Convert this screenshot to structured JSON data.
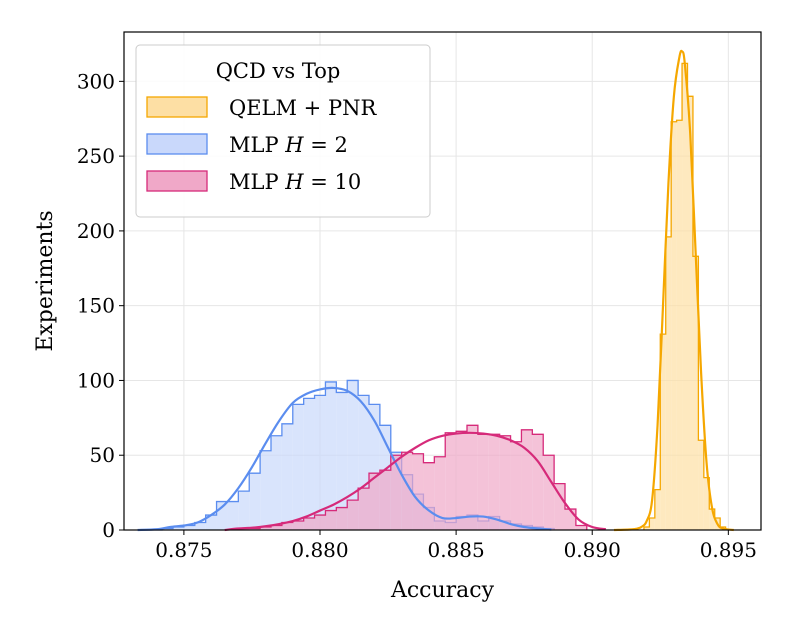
{
  "chart_data": {
    "type": "histogram",
    "title": "",
    "xlabel": "Accuracy",
    "ylabel": "Experiments",
    "xlim": [
      0.8728,
      0.8962
    ],
    "ylim": [
      0,
      333
    ],
    "xticks": [
      0.875,
      0.88,
      0.885,
      0.89,
      0.895
    ],
    "xtick_labels": [
      "0.875",
      "0.880",
      "0.885",
      "0.890",
      "0.895"
    ],
    "yticks": [
      0,
      50,
      100,
      150,
      200,
      250,
      300
    ],
    "ytick_labels": [
      "0",
      "50",
      "100",
      "150",
      "200",
      "250",
      "300"
    ],
    "grid": true,
    "legend": {
      "title": "QCD vs Top",
      "placement": "top-left",
      "entries": [
        "QELM + PNR",
        "MLP H = 2",
        "MLP H = 10"
      ]
    },
    "series": [
      {
        "name": "MLP H = 2",
        "label_main": "MLP ",
        "label_var": "H",
        "label_rest": " = 2",
        "fill": "#c9d8fb",
        "edge": "#5b8def",
        "bin_width": 0.0004,
        "bins": [
          [
            0.8734,
            0
          ],
          [
            0.8738,
            0
          ],
          [
            0.8742,
            1
          ],
          [
            0.8746,
            2
          ],
          [
            0.875,
            3
          ],
          [
            0.8754,
            5
          ],
          [
            0.8758,
            10
          ],
          [
            0.8762,
            19
          ],
          [
            0.8766,
            19
          ],
          [
            0.877,
            26
          ],
          [
            0.8774,
            38
          ],
          [
            0.8778,
            53
          ],
          [
            0.8782,
            63
          ],
          [
            0.8786,
            71
          ],
          [
            0.879,
            84
          ],
          [
            0.8794,
            88
          ],
          [
            0.8798,
            90
          ],
          [
            0.8802,
            99
          ],
          [
            0.8806,
            92
          ],
          [
            0.881,
            100
          ],
          [
            0.8814,
            90
          ],
          [
            0.8818,
            84
          ],
          [
            0.8822,
            70
          ],
          [
            0.8826,
            52
          ],
          [
            0.883,
            37
          ],
          [
            0.8834,
            24
          ],
          [
            0.8838,
            15
          ],
          [
            0.8842,
            6
          ],
          [
            0.8846,
            5
          ],
          [
            0.885,
            9
          ],
          [
            0.8854,
            10
          ],
          [
            0.8858,
            6
          ],
          [
            0.8862,
            9
          ],
          [
            0.8866,
            6
          ],
          [
            0.887,
            4
          ],
          [
            0.8874,
            3
          ],
          [
            0.8878,
            2
          ],
          [
            0.8882,
            1
          ]
        ],
        "kde": [
          [
            0.8733,
            0
          ],
          [
            0.874,
            0.5
          ],
          [
            0.8745,
            2
          ],
          [
            0.875,
            3
          ],
          [
            0.8755,
            5
          ],
          [
            0.876,
            10
          ],
          [
            0.8765,
            17
          ],
          [
            0.877,
            28
          ],
          [
            0.8775,
            42
          ],
          [
            0.878,
            58
          ],
          [
            0.8785,
            73
          ],
          [
            0.879,
            85
          ],
          [
            0.8795,
            91
          ],
          [
            0.88,
            94
          ],
          [
            0.8805,
            95
          ],
          [
            0.881,
            93
          ],
          [
            0.8815,
            86
          ],
          [
            0.882,
            73
          ],
          [
            0.8825,
            55
          ],
          [
            0.883,
            37
          ],
          [
            0.8835,
            22
          ],
          [
            0.884,
            13
          ],
          [
            0.8845,
            8
          ],
          [
            0.885,
            8
          ],
          [
            0.8855,
            9
          ],
          [
            0.886,
            9
          ],
          [
            0.8865,
            7
          ],
          [
            0.887,
            4
          ],
          [
            0.8875,
            2
          ],
          [
            0.888,
            1
          ],
          [
            0.8885,
            0.3
          ]
        ]
      },
      {
        "name": "MLP H = 10",
        "label_main": "MLP ",
        "label_var": "H",
        "label_rest": " = 10",
        "fill": "#f0a8c8",
        "edge": "#d62a7a",
        "bin_width": 0.0004,
        "bins": [
          [
            0.877,
            1
          ],
          [
            0.8774,
            1
          ],
          [
            0.8778,
            2
          ],
          [
            0.8782,
            3
          ],
          [
            0.8786,
            5
          ],
          [
            0.879,
            6
          ],
          [
            0.8794,
            8
          ],
          [
            0.8798,
            10
          ],
          [
            0.8802,
            13
          ],
          [
            0.8806,
            15
          ],
          [
            0.881,
            20
          ],
          [
            0.8814,
            28
          ],
          [
            0.8818,
            38
          ],
          [
            0.8822,
            40
          ],
          [
            0.8826,
            50
          ],
          [
            0.883,
            52
          ],
          [
            0.8834,
            51
          ],
          [
            0.8838,
            45
          ],
          [
            0.8842,
            49
          ],
          [
            0.8846,
            65
          ],
          [
            0.885,
            66
          ],
          [
            0.8854,
            70
          ],
          [
            0.8858,
            64
          ],
          [
            0.8862,
            64
          ],
          [
            0.8866,
            63
          ],
          [
            0.887,
            59
          ],
          [
            0.8874,
            67
          ],
          [
            0.8878,
            64
          ],
          [
            0.8882,
            50
          ],
          [
            0.8886,
            31
          ],
          [
            0.889,
            14
          ],
          [
            0.8894,
            3
          ]
        ],
        "kde": [
          [
            0.8765,
            0
          ],
          [
            0.877,
            1
          ],
          [
            0.8775,
            1.5
          ],
          [
            0.878,
            2.5
          ],
          [
            0.8785,
            4
          ],
          [
            0.879,
            6
          ],
          [
            0.8795,
            9
          ],
          [
            0.88,
            13
          ],
          [
            0.8805,
            17
          ],
          [
            0.881,
            22
          ],
          [
            0.8815,
            28
          ],
          [
            0.882,
            35
          ],
          [
            0.8825,
            42
          ],
          [
            0.883,
            49
          ],
          [
            0.8835,
            55
          ],
          [
            0.884,
            60
          ],
          [
            0.8845,
            63
          ],
          [
            0.885,
            64.5
          ],
          [
            0.8855,
            65
          ],
          [
            0.886,
            64.5
          ],
          [
            0.8865,
            63
          ],
          [
            0.887,
            60
          ],
          [
            0.8875,
            55
          ],
          [
            0.888,
            46
          ],
          [
            0.8885,
            32
          ],
          [
            0.889,
            18
          ],
          [
            0.8895,
            7
          ],
          [
            0.89,
            2
          ],
          [
            0.8905,
            0.5
          ]
        ]
      },
      {
        "name": "QELM + PNR",
        "label_main": "QELM + PNR",
        "label_var": "",
        "label_rest": "",
        "fill": "#fddfa4",
        "edge": "#f5a700",
        "bin_width": 0.0002,
        "bins": [
          [
            0.8919,
            2
          ],
          [
            0.8921,
            8
          ],
          [
            0.8923,
            27
          ],
          [
            0.8925,
            131
          ],
          [
            0.8927,
            196
          ],
          [
            0.8929,
            273
          ],
          [
            0.8931,
            274
          ],
          [
            0.8933,
            312
          ],
          [
            0.8935,
            290
          ],
          [
            0.8937,
            183
          ],
          [
            0.8939,
            60
          ],
          [
            0.8941,
            35
          ],
          [
            0.8943,
            14
          ],
          [
            0.8945,
            8
          ],
          [
            0.8947,
            2
          ]
        ],
        "kde": [
          [
            0.8908,
            0
          ],
          [
            0.8915,
            0.5
          ],
          [
            0.8918,
            2
          ],
          [
            0.892,
            6
          ],
          [
            0.8922,
            20
          ],
          [
            0.8924,
            70
          ],
          [
            0.8926,
            150
          ],
          [
            0.8928,
            232
          ],
          [
            0.893,
            290
          ],
          [
            0.8932,
            316
          ],
          [
            0.8933,
            320
          ],
          [
            0.8934,
            312
          ],
          [
            0.8936,
            265
          ],
          [
            0.8938,
            185
          ],
          [
            0.894,
            105
          ],
          [
            0.8942,
            45
          ],
          [
            0.8944,
            15
          ],
          [
            0.8946,
            4
          ],
          [
            0.8948,
            1
          ],
          [
            0.8952,
            0
          ]
        ]
      }
    ]
  }
}
